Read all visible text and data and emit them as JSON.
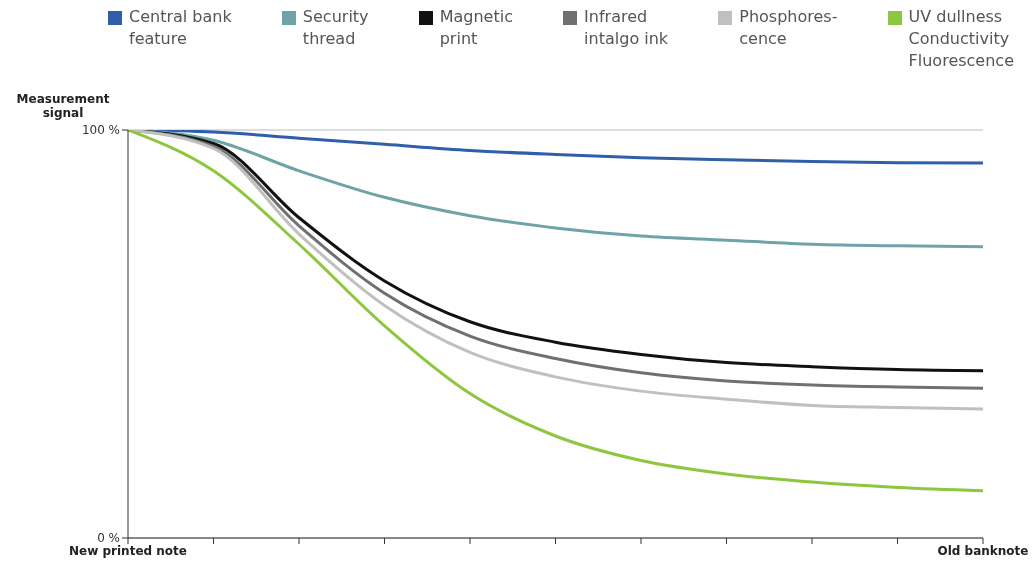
{
  "chart_data": {
    "type": "line",
    "ylabel": "Measurement signal",
    "categories": [
      "New printed note",
      null,
      null,
      null,
      null,
      null,
      null,
      null,
      null,
      null,
      "Old banknote"
    ],
    "ylim": [
      0,
      100
    ],
    "yticks": [
      {
        "value": 0,
        "label": "0 %"
      },
      {
        "value": 100,
        "label": "100 %"
      }
    ],
    "grid": "y",
    "legend": "top",
    "marker": "none",
    "line_style": "solid",
    "series": [
      {
        "name": "Central bank\nfeature",
        "color": "#2e5fa8",
        "values": [
          100,
          99.5,
          98,
          96.5,
          95,
          94,
          93.2,
          92.7,
          92.3,
          92,
          91.9
        ]
      },
      {
        "name": "Security\nthread",
        "color": "#6fa3a8",
        "values": [
          100,
          97.5,
          90,
          83.5,
          79,
          76,
          74,
          73,
          72,
          71.6,
          71.4
        ]
      },
      {
        "name": "Magnetic\nprint",
        "color": "#111111",
        "values": [
          100,
          96.7,
          78.5,
          63,
          53,
          48,
          45,
          43,
          42,
          41.3,
          41
        ]
      },
      {
        "name": "Infrared\nintalgo ink",
        "color": "#707070",
        "values": [
          100,
          96,
          76.5,
          60,
          49.5,
          44,
          40.5,
          38.5,
          37.5,
          37,
          36.7
        ]
      },
      {
        "name": "Phosphores-\ncence",
        "color": "#c0c0c0",
        "values": [
          100,
          95.5,
          74.5,
          57,
          45.5,
          39.5,
          36,
          34,
          32.5,
          32,
          31.6
        ]
      },
      {
        "name": "UV dullness\nConductivity\nFluorescence",
        "color": "#8dc63f",
        "values": [
          100,
          90,
          72,
          52,
          35.4,
          25,
          19,
          15.7,
          13.7,
          12.4,
          11.6
        ]
      }
    ]
  }
}
